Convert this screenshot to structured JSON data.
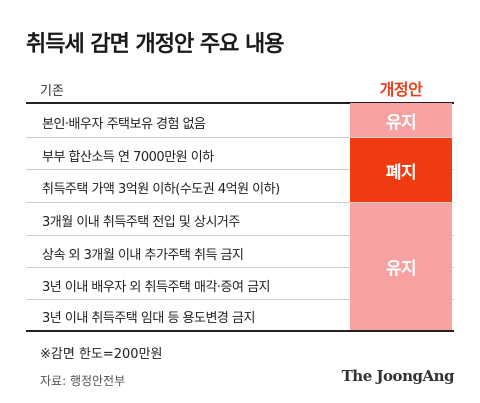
{
  "title": "취득세 감면 개정안 주요 내용",
  "header": {
    "left": "기존",
    "right": "개정안"
  },
  "rows": [
    "본인·배우자 주택보유 경험 없음",
    "부부 합산소득 연 7000만원 이하",
    "취득주택 가액 3억원 이하(수도권 4억원 이하)",
    "3개월 이내 취득주택 전입 및 상시거주",
    "상속 외 3개월 이내 추가주택 취득 금지",
    "3년 이내 배우자 외 취득주택 매각·증여 금지",
    "3년 이내 취득주택 임대 등 용도변경 금지"
  ],
  "status": [
    "유지",
    "폐지",
    "유지"
  ],
  "colors": {
    "keep": "#f7a1a3",
    "abolish": "#ef3b10",
    "accent": "#e8401c"
  },
  "note": "※감면 한도=200만원",
  "source": "자료: 행정안전부",
  "logo": "The JoongAng"
}
